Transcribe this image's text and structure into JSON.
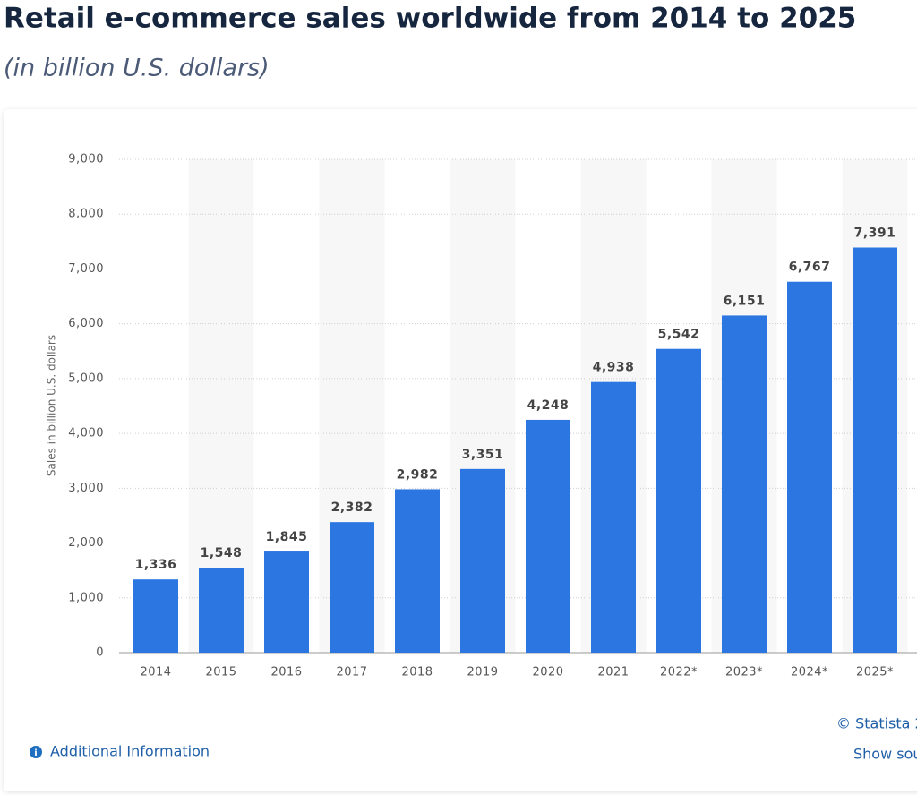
{
  "chart_data": {
    "type": "bar",
    "title": "Retail e-commerce sales worldwide from 2014 to 2025",
    "subtitle": "(in billion U.S. dollars)",
    "y_label": "Sales in billion U.S. dollars",
    "categories": [
      "2014",
      "2015",
      "2016",
      "2017",
      "2018",
      "2019",
      "2020",
      "2021",
      "2022*",
      "2023*",
      "2024*",
      "2025*"
    ],
    "values": [
      1336,
      1548,
      1845,
      2382,
      2982,
      3351,
      4248,
      4938,
      5542,
      6151,
      6767,
      7391
    ],
    "value_labels": [
      "1,336",
      "1,548",
      "1,845",
      "2,382",
      "2,982",
      "3,351",
      "4,248",
      "4,938",
      "5,542",
      "6,151",
      "6,767",
      "7,391"
    ],
    "color": "#2b76e0",
    "ylim": [
      0,
      9000
    ],
    "yticks": [
      0,
      {
        "value": 1000,
        "label": "1,000"
      },
      {
        "value": 2000,
        "label": "2,000"
      },
      {
        "value": 3000,
        "label": "3,000"
      },
      {
        "value": 4000,
        "label": "4,000"
      },
      {
        "value": 5000,
        "label": "5,000"
      },
      {
        "value": 6000,
        "label": "6,000"
      },
      {
        "value": 7000,
        "label": "7,000"
      },
      {
        "value": 8000,
        "label": "8,000"
      },
      {
        "value": 9000,
        "label": "9,000"
      }
    ],
    "grid": true,
    "footer": {
      "info": "Additional Information",
      "credit": "© Statista 2",
      "link": "Show sou"
    }
  }
}
